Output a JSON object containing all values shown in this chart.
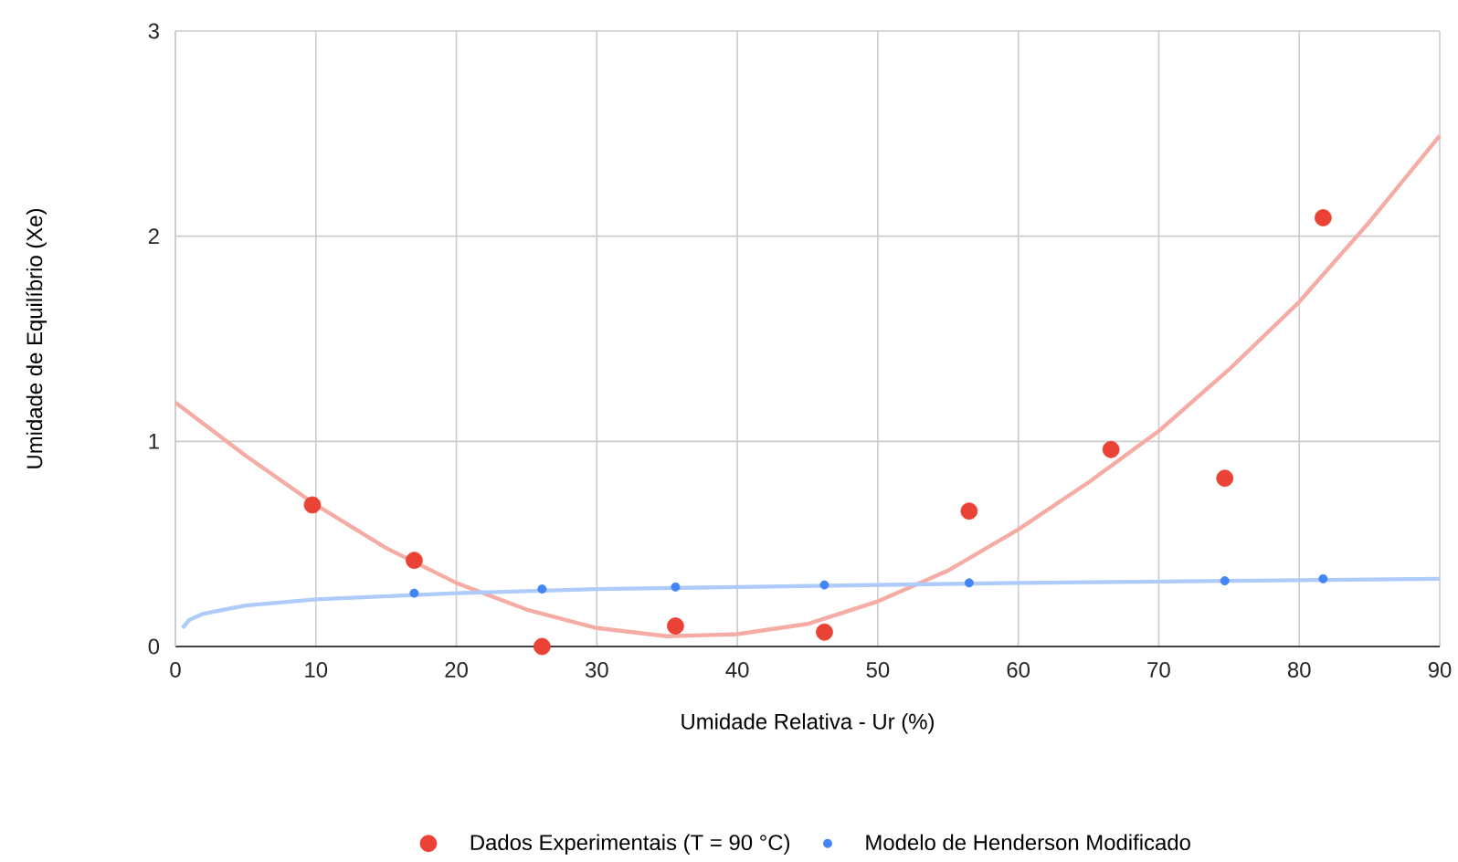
{
  "chart_data": {
    "type": "scatter",
    "xlabel": "Umidade Relativa - Ur (%)",
    "ylabel": "Umidade de Equilíbrio (Xe)",
    "xlim": [
      0,
      90
    ],
    "xticks": [
      0,
      10,
      20,
      30,
      40,
      50,
      60,
      70,
      80,
      90
    ],
    "ylim": [
      0,
      3
    ],
    "yticks": [
      0,
      1,
      2,
      3
    ],
    "grid": true,
    "legend": "bottom",
    "series": [
      {
        "name": "Dados Experimentais (T = 90 °C)",
        "marker": "circle",
        "color": "#ea4335",
        "x": [
          9.75,
          17.0,
          26.1,
          35.6,
          46.2,
          56.5,
          66.6,
          74.7,
          81.7
        ],
        "values": [
          0.69,
          0.42,
          0,
          0.1,
          0.07,
          0.66,
          0.96,
          0.82,
          2.09
        ]
      },
      {
        "name": "Modelo de Henderson Modificado",
        "marker": "circle",
        "color": "#4285f4",
        "x": [
          17.0,
          26.1,
          35.6,
          46.2,
          56.5,
          74.7,
          81.7
        ],
        "values": [
          0.26,
          0.28,
          0.29,
          0.3,
          0.31,
          0.32,
          0.33
        ]
      },
      {
        "type": "line",
        "marker": "none",
        "line_style": "solid",
        "color": "#f4aca5",
        "x": [
          0,
          5,
          10,
          15,
          20,
          25,
          30,
          35,
          40,
          45,
          50,
          55,
          60,
          65,
          70,
          75,
          80,
          85,
          90
        ],
        "values": [
          1.19,
          0.93,
          0.69,
          0.48,
          0.31,
          0.18,
          0.09,
          0.05,
          0.06,
          0.11,
          0.22,
          0.37,
          0.57,
          0.8,
          1.05,
          1.35,
          1.68,
          2.07,
          2.49
        ]
      },
      {
        "type": "line",
        "marker": "none",
        "line_style": "solid",
        "color": "#aecbfa",
        "x": [
          0.5,
          1,
          2,
          5,
          10,
          20,
          30,
          40,
          60,
          90
        ],
        "values": [
          0.09,
          0.13,
          0.16,
          0.2,
          0.23,
          0.26,
          0.28,
          0.29,
          0.31,
          0.33
        ]
      }
    ]
  }
}
